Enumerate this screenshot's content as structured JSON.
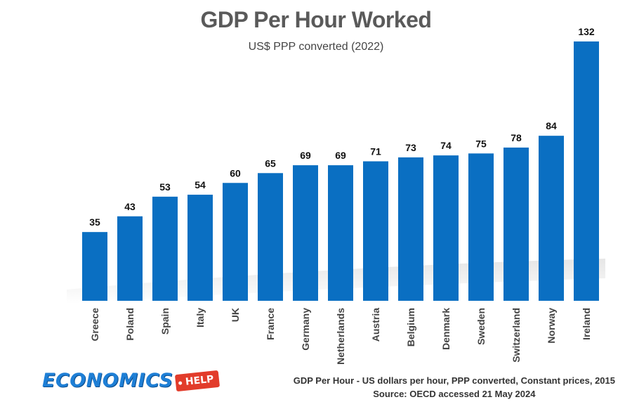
{
  "chart_data": {
    "type": "bar",
    "title": "GDP Per Hour Worked",
    "subtitle": "US$ PPP converted (2022)",
    "categories": [
      "Greece",
      "Poland",
      "Spain",
      "Italy",
      "UK",
      "France",
      "Germany",
      "Netherlands",
      "Austria",
      "Belgium",
      "Denmark",
      "Sweden",
      "Switzerland",
      "Norway",
      "Ireland"
    ],
    "values": [
      35,
      43,
      53,
      54,
      60,
      65,
      69,
      69,
      71,
      73,
      74,
      75,
      78,
      84,
      132
    ],
    "ylim": [
      0,
      132
    ],
    "bar_color": "#0a6fc2",
    "grid": false,
    "legend": "none"
  },
  "footer": {
    "logo_text": "ECONOMICS",
    "logo_tag": "HELP",
    "note_line1": "GDP Per Hour - US dollars per hour, PPP converted, Constant prices, 2015",
    "note_line2": "Source: OECD accessed 21 May 2024"
  },
  "colors": {
    "logo_blue": "#1e7fd6",
    "logo_red": "#e23c2b"
  }
}
